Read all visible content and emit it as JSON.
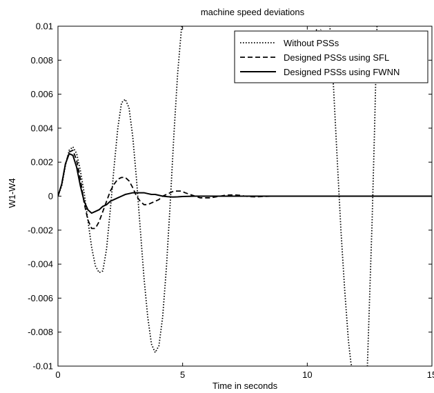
{
  "chart_data": {
    "type": "line",
    "title": "machine speed deviations",
    "xlabel": "Time in seconds",
    "ylabel": "W1-W4",
    "xlim": [
      0,
      15
    ],
    "ylim": [
      -0.01,
      0.01
    ],
    "x_ticks": [
      0,
      5,
      10,
      15
    ],
    "x_tick_labels": [
      "0",
      "5",
      "10",
      "15"
    ],
    "y_ticks": [
      -0.01,
      -0.008,
      -0.006,
      -0.004,
      -0.002,
      0,
      0.002,
      0.004,
      0.006,
      0.008,
      0.01
    ],
    "y_tick_labels": [
      "-0.01",
      "-0.008",
      "-0.006",
      "-0.004",
      "-0.002",
      "0",
      "0.002",
      "0.004",
      "0.006",
      "0.008",
      "0.01"
    ],
    "grid": false,
    "legend_position": "top-right",
    "series": [
      {
        "name": "Without PSSs",
        "dash": "dotted",
        "color": "#000000",
        "x": [
          0,
          0.15,
          0.3,
          0.45,
          0.6,
          0.75,
          0.9,
          1.05,
          1.2,
          1.35,
          1.5,
          1.65,
          1.8,
          1.95,
          2.1,
          2.25,
          2.4,
          2.55,
          2.7,
          2.85,
          3.0,
          3.15,
          3.3,
          3.45,
          3.6,
          3.75,
          3.9,
          4.05,
          4.2,
          4.35,
          4.5,
          4.65,
          4.8,
          4.95,
          5.05
        ],
        "y": [
          0,
          0.0006,
          0.0018,
          0.0027,
          0.0029,
          0.0025,
          0.0015,
          0.0002,
          -0.0014,
          -0.003,
          -0.0041,
          -0.0045,
          -0.0044,
          -0.0031,
          -0.0008,
          0.0017,
          0.004,
          0.0055,
          0.0057,
          0.0052,
          0.0035,
          0.001,
          -0.0019,
          -0.0048,
          -0.0071,
          -0.0087,
          -0.0092,
          -0.0088,
          -0.0071,
          -0.0042,
          -0.0005,
          0.0036,
          0.0072,
          0.0098,
          0.0108
        ]
      },
      {
        "name": "",
        "dash": "dotted",
        "color": "#000000",
        "x": [
          10.9,
          11.05,
          11.2,
          11.35,
          11.5,
          11.65,
          11.75,
          11.9
        ],
        "y": [
          0.0102,
          0.0065,
          0.0022,
          -0.002,
          -0.0055,
          -0.0085,
          -0.0098,
          -0.0108
        ]
      },
      {
        "name": "",
        "dash": "dotted",
        "color": "#000000",
        "x": [
          12.4,
          12.5,
          12.6,
          12.7,
          12.8
        ],
        "y": [
          -0.0105,
          -0.006,
          -0.0015,
          0.004,
          0.0102
        ]
      },
      {
        "name": "",
        "dash": "dotted",
        "color": "#000000",
        "x": [
          10.35,
          10.45,
          10.55
        ],
        "y": [
          0.0098,
          0.0097,
          0.0098
        ]
      },
      {
        "name": "Designed PSSs using SFL",
        "dash": "dashed",
        "color": "#000000",
        "x": [
          0,
          0.15,
          0.3,
          0.45,
          0.6,
          0.75,
          0.9,
          1.05,
          1.2,
          1.35,
          1.5,
          1.65,
          1.8,
          1.95,
          2.1,
          2.25,
          2.4,
          2.55,
          2.7,
          2.85,
          3.0,
          3.15,
          3.3,
          3.45,
          3.6,
          3.75,
          3.9,
          4.05,
          4.2,
          4.35,
          4.5,
          4.65,
          4.8,
          4.95,
          5.1,
          5.3,
          5.5,
          5.7,
          5.9,
          6.1,
          6.3,
          6.5,
          6.7,
          6.9,
          7.1,
          7.3,
          7.5,
          7.7,
          7.9,
          8.2,
          8.6,
          9.0,
          10.0,
          12.0,
          15.0
        ],
        "y": [
          0,
          0.0007,
          0.0019,
          0.0026,
          0.0027,
          0.0021,
          0.001,
          -0.0004,
          -0.0014,
          -0.0019,
          -0.0019,
          -0.0015,
          -0.0009,
          -0.0003,
          0.0003,
          0.0007,
          0.001,
          0.0011,
          0.0011,
          0.0009,
          0.0005,
          0.0,
          -0.0003,
          -0.0005,
          -0.0005,
          -0.0004,
          -0.0003,
          -0.0002,
          0.0,
          0.0001,
          0.0002,
          0.0003,
          0.0003,
          0.0003,
          0.0002,
          0.0001,
          0.0,
          -0.0001,
          -0.0001,
          -0.0001,
          -5e-05,
          0.0,
          5e-05,
          7e-05,
          7e-05,
          5e-05,
          0.0,
          -3e-05,
          -4e-05,
          -2e-05,
          0.0,
          0.0,
          0.0,
          0.0,
          0.0
        ]
      },
      {
        "name": "Designed PSSs using FWNN",
        "dash": "solid",
        "color": "#000000",
        "x": [
          0,
          0.15,
          0.3,
          0.45,
          0.6,
          0.75,
          0.9,
          1.05,
          1.2,
          1.35,
          1.5,
          1.65,
          1.8,
          1.95,
          2.1,
          2.25,
          2.4,
          2.55,
          2.7,
          2.85,
          3.0,
          3.15,
          3.3,
          3.45,
          3.6,
          3.75,
          3.9,
          4.05,
          4.2,
          4.4,
          4.6,
          4.8,
          5.0,
          5.5,
          6.0,
          7.0,
          8.0,
          10.0,
          12.0,
          15.0
        ],
        "y": [
          0,
          0.0007,
          0.0019,
          0.0025,
          0.0024,
          0.0017,
          0.0006,
          -0.0003,
          -0.0008,
          -0.001,
          -0.0009,
          -0.0008,
          -0.0006,
          -0.0005,
          -0.0003,
          -0.0002,
          -0.0001,
          0.0,
          0.0001,
          0.00015,
          0.0002,
          0.0002,
          0.0002,
          0.0002,
          0.00015,
          0.0001,
          0.0001,
          5e-05,
          0.0,
          -3e-05,
          -5e-05,
          -4e-05,
          -2e-05,
          0.0,
          0.0,
          0.0,
          0.0,
          0.0,
          0.0,
          0.0
        ]
      }
    ]
  }
}
